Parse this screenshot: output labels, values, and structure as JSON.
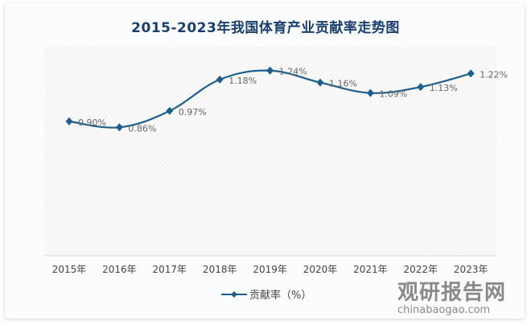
{
  "chart_data": {
    "type": "line",
    "title": "2015-2023年我国体育产业贡献率走势图",
    "categories": [
      "2015年",
      "2016年",
      "2017年",
      "2018年",
      "2019年",
      "2020年",
      "2021年",
      "2022年",
      "2023年"
    ],
    "series": [
      {
        "name": "贡献率（%）",
        "values": [
          0.9,
          0.86,
          0.97,
          1.18,
          1.24,
          1.16,
          1.09,
          1.13,
          1.22
        ],
        "labels": [
          "0.90%",
          "0.86%",
          "0.97%",
          "1.18%",
          "1.24%",
          "1.16%",
          "1.09%",
          "1.13%",
          "1.22%"
        ],
        "color": "#1f5f8b"
      }
    ],
    "ylim": [
      0,
      1.4
    ],
    "grid": false,
    "smooth": true,
    "legend": "bottom",
    "background": "diagonal-hatch"
  },
  "watermark": {
    "cn": "观研报告网",
    "en": "chinabaogao.com"
  }
}
